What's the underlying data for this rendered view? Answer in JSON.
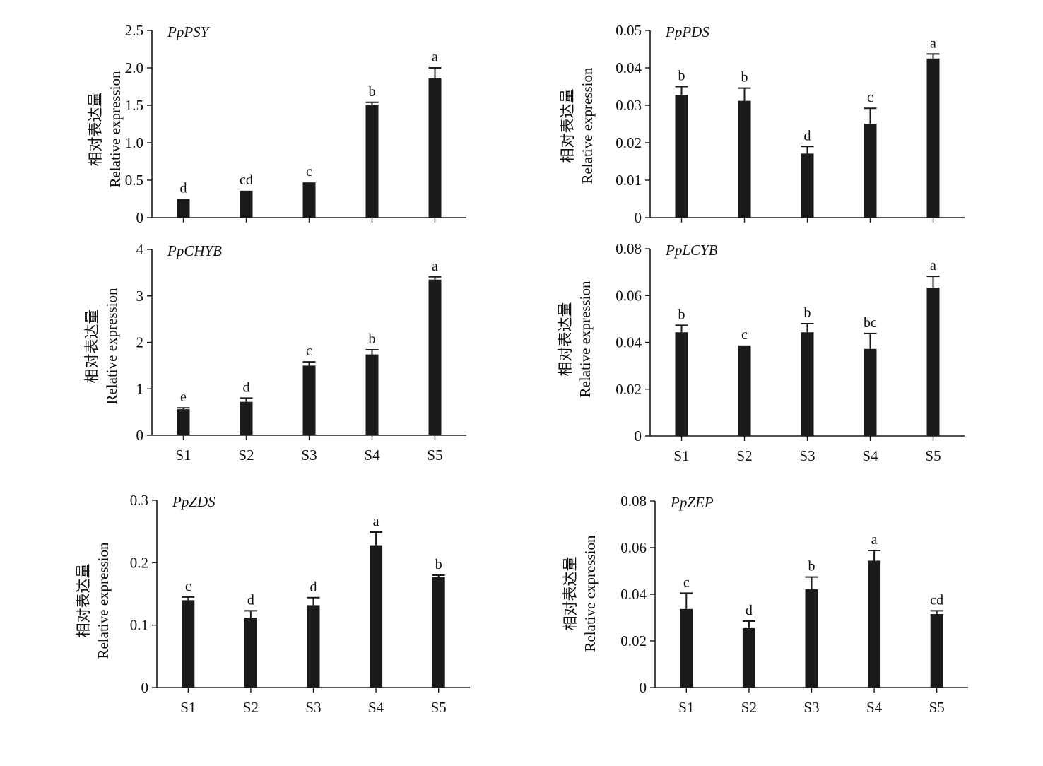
{
  "figure": {
    "colors": {
      "bar": "#1a1a1a",
      "axis": "#1a1a1a"
    },
    "ylabel_cn": "相对表达量",
    "ylabel_en": "Relative expression"
  },
  "chart_data": [
    {
      "type": "bar",
      "title": "PpPSY",
      "ylabel": "相对表达量 Relative expression",
      "xlabel": "",
      "categories": [
        "S1",
        "S2",
        "S3",
        "S4",
        "S5"
      ],
      "show_x_labels": false,
      "values": [
        0.25,
        0.36,
        0.47,
        1.5,
        1.86
      ],
      "errors": [
        0.0,
        0.0,
        0.0,
        0.04,
        0.14
      ],
      "letters": [
        "d",
        "cd",
        "c",
        "b",
        "a"
      ],
      "ylim": [
        0,
        2.5
      ],
      "yticks": [
        0,
        0.5,
        1.0,
        1.5,
        2.0,
        2.5
      ],
      "ytick_labels": [
        "0",
        "0.5",
        "1.0",
        "1.5",
        "2.0",
        "2.5"
      ],
      "grid": false
    },
    {
      "type": "bar",
      "title": "PpPDS",
      "ylabel": "相对表达量 Relative expression",
      "xlabel": "",
      "categories": [
        "S1",
        "S2",
        "S3",
        "S4",
        "S5"
      ],
      "show_x_labels": false,
      "values": [
        0.0328,
        0.0312,
        0.0171,
        0.0251,
        0.0425
      ],
      "errors": [
        0.0022,
        0.0034,
        0.0019,
        0.0041,
        0.0012
      ],
      "letters": [
        "b",
        "b",
        "d",
        "c",
        "a"
      ],
      "ylim": [
        0,
        0.05
      ],
      "yticks": [
        0,
        0.01,
        0.02,
        0.03,
        0.04,
        0.05
      ],
      "ytick_labels": [
        "0",
        "0.01",
        "0.02",
        "0.03",
        "0.04",
        "0.05"
      ],
      "grid": false
    },
    {
      "type": "bar",
      "title": "PpCHYB",
      "ylabel": "相对表达量 Relative expression",
      "xlabel": "",
      "categories": [
        "S1",
        "S2",
        "S3",
        "S4",
        "S5"
      ],
      "show_x_labels": true,
      "values": [
        0.56,
        0.72,
        1.5,
        1.74,
        3.35
      ],
      "errors": [
        0.03,
        0.08,
        0.08,
        0.1,
        0.06
      ],
      "letters": [
        "e",
        "d",
        "c",
        "b",
        "a"
      ],
      "ylim": [
        0,
        4
      ],
      "yticks": [
        0,
        1,
        2,
        3,
        4
      ],
      "ytick_labels": [
        "0",
        "1",
        "2",
        "3",
        "4"
      ],
      "grid": false
    },
    {
      "type": "bar",
      "title": "PpLCYB",
      "ylabel": "相对表达量 Relative expression",
      "xlabel": "",
      "categories": [
        "S1",
        "S2",
        "S3",
        "S4",
        "S5"
      ],
      "show_x_labels": true,
      "values": [
        0.0443,
        0.0387,
        0.0443,
        0.0372,
        0.0634
      ],
      "errors": [
        0.003,
        0.0,
        0.0037,
        0.0066,
        0.0048
      ],
      "letters": [
        "b",
        "c",
        "b",
        "bc",
        "a"
      ],
      "ylim": [
        0,
        0.08
      ],
      "yticks": [
        0,
        0.02,
        0.04,
        0.06,
        0.08
      ],
      "ytick_labels": [
        "0",
        "0.02",
        "0.04",
        "0.06",
        "0.08"
      ],
      "grid": false
    },
    {
      "type": "bar",
      "title": "PpZDS",
      "ylabel": "相对表达量 Relative expression",
      "xlabel": "",
      "categories": [
        "S1",
        "S2",
        "S3",
        "S4",
        "S5"
      ],
      "show_x_labels": true,
      "values": [
        0.14,
        0.112,
        0.132,
        0.228,
        0.177
      ],
      "errors": [
        0.005,
        0.011,
        0.012,
        0.021,
        0.003
      ],
      "letters": [
        "c",
        "d",
        "d",
        "a",
        "b"
      ],
      "ylim": [
        0,
        0.3
      ],
      "yticks": [
        0,
        0.1,
        0.2,
        0.3
      ],
      "ytick_labels": [
        "0",
        "0.1",
        "0.2",
        "0.3"
      ],
      "grid": false
    },
    {
      "type": "bar",
      "title": "PpZEP",
      "ylabel": "相对表达量 Relative expression",
      "xlabel": "",
      "categories": [
        "S1",
        "S2",
        "S3",
        "S4",
        "S5"
      ],
      "show_x_labels": true,
      "values": [
        0.0337,
        0.0255,
        0.0421,
        0.0544,
        0.0315
      ],
      "errors": [
        0.0068,
        0.003,
        0.0053,
        0.0044,
        0.0014
      ],
      "letters": [
        "c",
        "d",
        "b",
        "a",
        "cd"
      ],
      "ylim": [
        0,
        0.08
      ],
      "yticks": [
        0,
        0.02,
        0.04,
        0.06,
        0.08
      ],
      "ytick_labels": [
        "0",
        "0.02",
        "0.04",
        "0.06",
        "0.08"
      ],
      "grid": false
    }
  ]
}
